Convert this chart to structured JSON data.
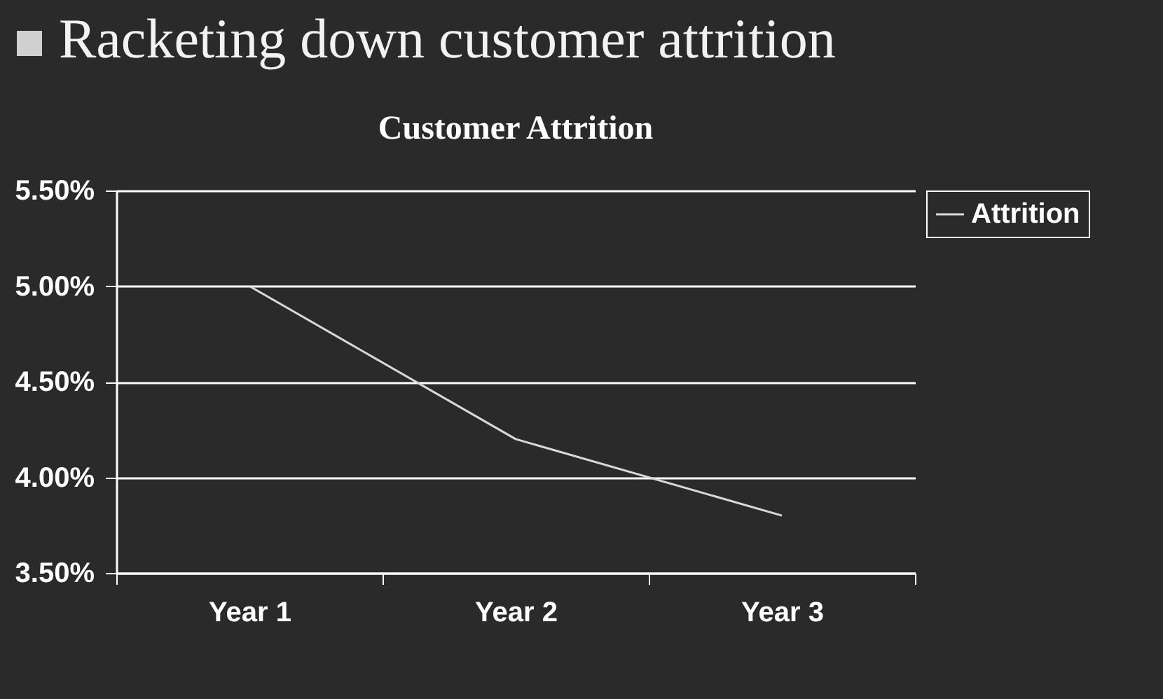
{
  "chart_data": {
    "type": "line",
    "title": "Racketing down customer attrition",
    "subtitle": "Customer Attrition",
    "categories": [
      "Year 1",
      "Year 2",
      "Year 3"
    ],
    "series": [
      {
        "name": "Attrition",
        "color": "#d9d9d9",
        "values": [
          5.0,
          4.2,
          3.8
        ]
      }
    ],
    "ylim": [
      3.5,
      5.5
    ],
    "yticks": [
      {
        "value": 3.5,
        "label": "3.50%"
      },
      {
        "value": 4.0,
        "label": "4.00%"
      },
      {
        "value": 4.5,
        "label": "4.50%"
      },
      {
        "value": 5.0,
        "label": "5.00%"
      },
      {
        "value": 5.5,
        "label": "5.50%"
      }
    ],
    "grid": "y",
    "legend": "right",
    "marker": "none",
    "line_style": "solid"
  }
}
